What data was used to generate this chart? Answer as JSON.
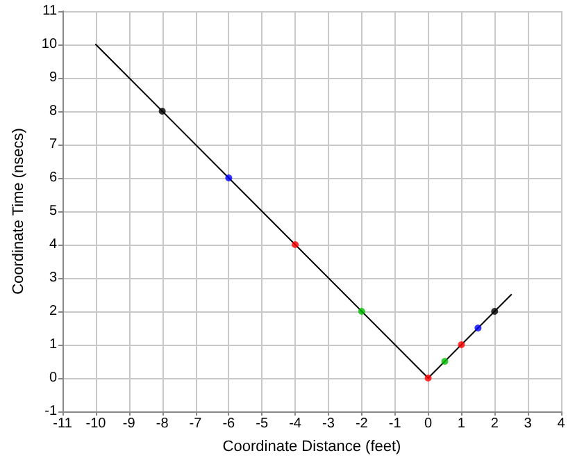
{
  "chart_data": {
    "type": "scatter",
    "xlabel": "Coordinate Distance (feet)",
    "ylabel": "Coordinate Time (nsecs)",
    "xlim": [
      -11,
      4
    ],
    "xticks": [
      -11,
      -10,
      -9,
      -8,
      -7,
      -6,
      -5,
      -4,
      -3,
      -2,
      -1,
      0,
      1,
      2,
      3,
      4
    ],
    "ylim": [
      -1,
      11
    ],
    "yticks": [
      -1,
      0,
      1,
      2,
      3,
      4,
      5,
      6,
      7,
      8,
      9,
      10,
      11
    ],
    "grid": true,
    "series": [
      {
        "type": "line",
        "color": "#000000",
        "marker": "none",
        "line_style": "solid",
        "x": [
          -10,
          0,
          2.5
        ],
        "values": [
          10,
          0,
          2.5
        ]
      },
      {
        "marker": "circle",
        "x": [
          -8,
          -6,
          -4,
          -2,
          0,
          0.5,
          1,
          1.5,
          2
        ],
        "values": [
          8,
          6,
          4,
          2,
          0,
          0.5,
          1,
          1.5,
          2
        ],
        "colors": [
          "#000000",
          "#0000ff",
          "#ff0000",
          "#00c000",
          "#ff0000",
          "#00c000",
          "#ff0000",
          "#0000ff",
          "#000000"
        ]
      }
    ]
  }
}
